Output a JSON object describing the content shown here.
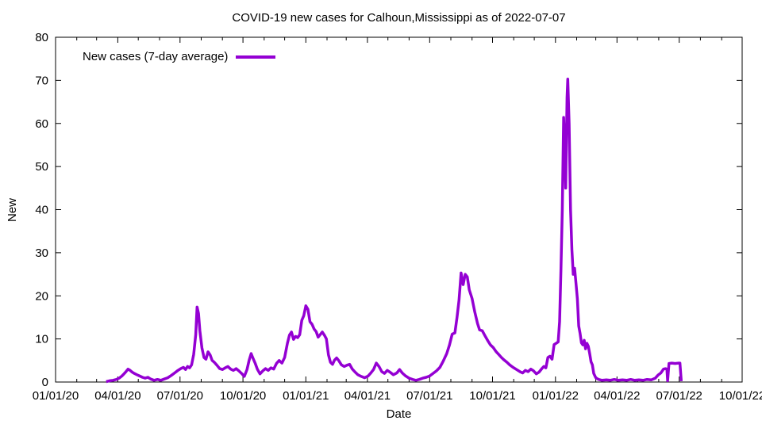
{
  "chart_data": {
    "type": "line",
    "title": "COVID-19 new cases for Calhoun,Mississippi as of 2022-07-07",
    "xlabel": "Date",
    "ylabel": "New",
    "ylim": [
      0,
      80
    ],
    "y_tick_step": 10,
    "y_tick_labels": [
      "0",
      "10",
      "20",
      "30",
      "40",
      "50",
      "60",
      "70",
      "80"
    ],
    "x_range": [
      "2020-01-01",
      "2022-10-01"
    ],
    "x_ticks": [
      {
        "date": "2020-01-01",
        "label": "01/01/20"
      },
      {
        "date": "2020-04-01",
        "label": "04/01/20"
      },
      {
        "date": "2020-07-01",
        "label": "07/01/20"
      },
      {
        "date": "2020-10-01",
        "label": "10/01/20"
      },
      {
        "date": "2021-01-01",
        "label": "01/01/21"
      },
      {
        "date": "2021-04-01",
        "label": "04/01/21"
      },
      {
        "date": "2021-07-01",
        "label": "07/01/21"
      },
      {
        "date": "2021-10-01",
        "label": "10/01/21"
      },
      {
        "date": "2022-01-01",
        "label": "01/01/22"
      },
      {
        "date": "2022-04-01",
        "label": "04/01/22"
      },
      {
        "date": "2022-07-01",
        "label": "07/01/22"
      },
      {
        "date": "2022-10-01",
        "label": "10/01/22"
      }
    ],
    "minor_x_ticks": "monthly",
    "grid": false,
    "background_color": "#ffffff",
    "axis_color": "#000000",
    "legend": {
      "position": "top-left-inside",
      "entries": [
        {
          "label": "New cases (7-day average)",
          "color": "#9400d3"
        }
      ]
    },
    "series": [
      {
        "name": "New cases (7-day average)",
        "color": "#9400d3",
        "line_width": 3.5,
        "points": [
          [
            "2020-03-15",
            0.1
          ],
          [
            "2020-03-20",
            0.3
          ],
          [
            "2020-03-25",
            0.4
          ],
          [
            "2020-03-30",
            0.6
          ],
          [
            "2020-04-03",
            0.9
          ],
          [
            "2020-04-07",
            1.4
          ],
          [
            "2020-04-10",
            1.9
          ],
          [
            "2020-04-13",
            2.4
          ],
          [
            "2020-04-16",
            3.0
          ],
          [
            "2020-04-19",
            2.7
          ],
          [
            "2020-04-22",
            2.3
          ],
          [
            "2020-04-25",
            2.0
          ],
          [
            "2020-04-29",
            1.7
          ],
          [
            "2020-05-03",
            1.4
          ],
          [
            "2020-05-07",
            1.1
          ],
          [
            "2020-05-11",
            0.9
          ],
          [
            "2020-05-15",
            1.1
          ],
          [
            "2020-05-19",
            0.7
          ],
          [
            "2020-05-24",
            0.4
          ],
          [
            "2020-05-29",
            0.6
          ],
          [
            "2020-06-03",
            0.4
          ],
          [
            "2020-06-08",
            0.7
          ],
          [
            "2020-06-13",
            1.0
          ],
          [
            "2020-06-18",
            1.5
          ],
          [
            "2020-06-23",
            2.1
          ],
          [
            "2020-06-28",
            2.7
          ],
          [
            "2020-07-02",
            3.1
          ],
          [
            "2020-07-06",
            3.4
          ],
          [
            "2020-07-09",
            2.9
          ],
          [
            "2020-07-12",
            3.6
          ],
          [
            "2020-07-15",
            3.3
          ],
          [
            "2020-07-18",
            4.0
          ],
          [
            "2020-07-21",
            6.4
          ],
          [
            "2020-07-24",
            11.0
          ],
          [
            "2020-07-26",
            17.4
          ],
          [
            "2020-07-28",
            15.9
          ],
          [
            "2020-07-30",
            11.9
          ],
          [
            "2020-08-02",
            7.9
          ],
          [
            "2020-08-05",
            5.7
          ],
          [
            "2020-08-08",
            5.3
          ],
          [
            "2020-08-11",
            7.0
          ],
          [
            "2020-08-14",
            6.3
          ],
          [
            "2020-08-17",
            5.0
          ],
          [
            "2020-08-20",
            4.6
          ],
          [
            "2020-08-24",
            3.9
          ],
          [
            "2020-08-28",
            3.1
          ],
          [
            "2020-09-01",
            2.9
          ],
          [
            "2020-09-05",
            3.3
          ],
          [
            "2020-09-09",
            3.6
          ],
          [
            "2020-09-13",
            3.0
          ],
          [
            "2020-09-17",
            2.7
          ],
          [
            "2020-09-21",
            3.1
          ],
          [
            "2020-09-25",
            2.6
          ],
          [
            "2020-09-29",
            2.0
          ],
          [
            "2020-10-03",
            1.3
          ],
          [
            "2020-10-07",
            2.9
          ],
          [
            "2020-10-10",
            5.0
          ],
          [
            "2020-10-13",
            6.6
          ],
          [
            "2020-10-16",
            5.4
          ],
          [
            "2020-10-19",
            4.3
          ],
          [
            "2020-10-22",
            3.0
          ],
          [
            "2020-10-26",
            1.9
          ],
          [
            "2020-10-30",
            2.6
          ],
          [
            "2020-11-03",
            3.1
          ],
          [
            "2020-11-07",
            2.7
          ],
          [
            "2020-11-11",
            3.3
          ],
          [
            "2020-11-15",
            3.0
          ],
          [
            "2020-11-19",
            4.3
          ],
          [
            "2020-11-23",
            5.0
          ],
          [
            "2020-11-27",
            4.4
          ],
          [
            "2020-12-01",
            5.7
          ],
          [
            "2020-12-05",
            9.0
          ],
          [
            "2020-12-08",
            10.9
          ],
          [
            "2020-12-11",
            11.6
          ],
          [
            "2020-12-14",
            9.9
          ],
          [
            "2020-12-17",
            10.6
          ],
          [
            "2020-12-20",
            10.3
          ],
          [
            "2020-12-23",
            11.0
          ],
          [
            "2020-12-26",
            14.3
          ],
          [
            "2020-12-29",
            15.4
          ],
          [
            "2021-01-01",
            17.7
          ],
          [
            "2021-01-04",
            16.9
          ],
          [
            "2021-01-07",
            14.0
          ],
          [
            "2021-01-10",
            13.4
          ],
          [
            "2021-01-13",
            12.3
          ],
          [
            "2021-01-16",
            11.7
          ],
          [
            "2021-01-19",
            10.4
          ],
          [
            "2021-01-22",
            11.0
          ],
          [
            "2021-01-25",
            11.6
          ],
          [
            "2021-01-28",
            10.9
          ],
          [
            "2021-01-31",
            10.0
          ],
          [
            "2021-02-03",
            6.3
          ],
          [
            "2021-02-06",
            4.6
          ],
          [
            "2021-02-09",
            4.1
          ],
          [
            "2021-02-12",
            5.1
          ],
          [
            "2021-02-15",
            5.6
          ],
          [
            "2021-02-18",
            5.0
          ],
          [
            "2021-02-22",
            4.0
          ],
          [
            "2021-02-26",
            3.6
          ],
          [
            "2021-03-02",
            3.9
          ],
          [
            "2021-03-06",
            4.1
          ],
          [
            "2021-03-10",
            3.0
          ],
          [
            "2021-03-14",
            2.3
          ],
          [
            "2021-03-18",
            1.7
          ],
          [
            "2021-03-23",
            1.3
          ],
          [
            "2021-03-28",
            1.0
          ],
          [
            "2021-04-02",
            1.4
          ],
          [
            "2021-04-06",
            2.1
          ],
          [
            "2021-04-10",
            2.9
          ],
          [
            "2021-04-14",
            4.4
          ],
          [
            "2021-04-18",
            3.6
          ],
          [
            "2021-04-22",
            2.4
          ],
          [
            "2021-04-26",
            2.0
          ],
          [
            "2021-04-30",
            2.7
          ],
          [
            "2021-05-04",
            2.3
          ],
          [
            "2021-05-09",
            1.7
          ],
          [
            "2021-05-14",
            2.1
          ],
          [
            "2021-05-18",
            2.9
          ],
          [
            "2021-05-22",
            2.1
          ],
          [
            "2021-05-27",
            1.4
          ],
          [
            "2021-06-01",
            0.9
          ],
          [
            "2021-06-06",
            0.6
          ],
          [
            "2021-06-11",
            0.4
          ],
          [
            "2021-06-16",
            0.6
          ],
          [
            "2021-06-21",
            0.9
          ],
          [
            "2021-06-26",
            1.1
          ],
          [
            "2021-07-01",
            1.4
          ],
          [
            "2021-07-06",
            2.0
          ],
          [
            "2021-07-11",
            2.6
          ],
          [
            "2021-07-16",
            3.4
          ],
          [
            "2021-07-21",
            4.9
          ],
          [
            "2021-07-26",
            6.6
          ],
          [
            "2021-07-30",
            8.6
          ],
          [
            "2021-08-03",
            11.1
          ],
          [
            "2021-08-07",
            11.4
          ],
          [
            "2021-08-10",
            14.9
          ],
          [
            "2021-08-13",
            19.0
          ],
          [
            "2021-08-16",
            25.3
          ],
          [
            "2021-08-19",
            22.6
          ],
          [
            "2021-08-22",
            25.0
          ],
          [
            "2021-08-25",
            24.4
          ],
          [
            "2021-08-28",
            21.4
          ],
          [
            "2021-09-01",
            19.4
          ],
          [
            "2021-09-05",
            16.3
          ],
          [
            "2021-09-09",
            13.6
          ],
          [
            "2021-09-12",
            12.1
          ],
          [
            "2021-09-16",
            11.9
          ],
          [
            "2021-09-20",
            10.7
          ],
          [
            "2021-09-24",
            9.6
          ],
          [
            "2021-09-28",
            8.6
          ],
          [
            "2021-10-02",
            8.0
          ],
          [
            "2021-10-06",
            7.1
          ],
          [
            "2021-10-10",
            6.4
          ],
          [
            "2021-10-14",
            5.7
          ],
          [
            "2021-10-18",
            5.1
          ],
          [
            "2021-10-22",
            4.6
          ],
          [
            "2021-10-26",
            4.0
          ],
          [
            "2021-10-31",
            3.4
          ],
          [
            "2021-11-05",
            2.9
          ],
          [
            "2021-11-10",
            2.4
          ],
          [
            "2021-11-14",
            2.1
          ],
          [
            "2021-11-18",
            2.7
          ],
          [
            "2021-11-22",
            2.4
          ],
          [
            "2021-11-26",
            3.0
          ],
          [
            "2021-11-30",
            2.6
          ],
          [
            "2021-12-04",
            1.9
          ],
          [
            "2021-12-08",
            2.3
          ],
          [
            "2021-12-12",
            3.1
          ],
          [
            "2021-12-15",
            3.6
          ],
          [
            "2021-12-18",
            3.3
          ],
          [
            "2021-12-21",
            5.7
          ],
          [
            "2021-12-24",
            6.0
          ],
          [
            "2021-12-27",
            5.3
          ],
          [
            "2021-12-30",
            8.7
          ],
          [
            "2022-01-02",
            9.0
          ],
          [
            "2022-01-05",
            9.3
          ],
          [
            "2022-01-07",
            14.0
          ],
          [
            "2022-01-09",
            26.0
          ],
          [
            "2022-01-11",
            40.0
          ],
          [
            "2022-01-13",
            61.4
          ],
          [
            "2022-01-15",
            52.0
          ],
          [
            "2022-01-16",
            45.0
          ],
          [
            "2022-01-18",
            66.0
          ],
          [
            "2022-01-19",
            70.3
          ],
          [
            "2022-01-21",
            60.0
          ],
          [
            "2022-01-23",
            40.0
          ],
          [
            "2022-01-25",
            30.7
          ],
          [
            "2022-01-27",
            25.0
          ],
          [
            "2022-01-29",
            26.4
          ],
          [
            "2022-01-31",
            23.0
          ],
          [
            "2022-02-02",
            19.3
          ],
          [
            "2022-02-04",
            13.0
          ],
          [
            "2022-02-06",
            11.3
          ],
          [
            "2022-02-08",
            9.1
          ],
          [
            "2022-02-10",
            8.6
          ],
          [
            "2022-02-12",
            9.7
          ],
          [
            "2022-02-14",
            7.7
          ],
          [
            "2022-02-16",
            9.0
          ],
          [
            "2022-02-18",
            8.3
          ],
          [
            "2022-02-20",
            6.6
          ],
          [
            "2022-02-22",
            4.7
          ],
          [
            "2022-02-24",
            4.0
          ],
          [
            "2022-02-26",
            2.0
          ],
          [
            "2022-03-01",
            1.0
          ],
          [
            "2022-03-05",
            0.6
          ],
          [
            "2022-03-10",
            0.4
          ],
          [
            "2022-03-16",
            0.5
          ],
          [
            "2022-03-22",
            0.4
          ],
          [
            "2022-03-28",
            0.6
          ],
          [
            "2022-04-03",
            0.4
          ],
          [
            "2022-04-09",
            0.5
          ],
          [
            "2022-04-15",
            0.4
          ],
          [
            "2022-04-21",
            0.6
          ],
          [
            "2022-04-27",
            0.4
          ],
          [
            "2022-05-03",
            0.5
          ],
          [
            "2022-05-09",
            0.4
          ],
          [
            "2022-05-15",
            0.6
          ],
          [
            "2022-05-21",
            0.5
          ],
          [
            "2022-05-27",
            0.9
          ],
          [
            "2022-05-31",
            1.6
          ],
          [
            "2022-06-04",
            2.1
          ],
          [
            "2022-06-08",
            3.0
          ],
          [
            "2022-06-11",
            3.1
          ],
          [
            "2022-06-13",
            3.0
          ],
          [
            "2022-06-14",
            0.3
          ],
          [
            "2022-06-16",
            4.3
          ],
          [
            "2022-06-20",
            4.4
          ],
          [
            "2022-06-25",
            4.3
          ],
          [
            "2022-06-30",
            4.4
          ],
          [
            "2022-07-02",
            4.4
          ],
          [
            "2022-07-04",
            0.2
          ]
        ]
      }
    ]
  }
}
